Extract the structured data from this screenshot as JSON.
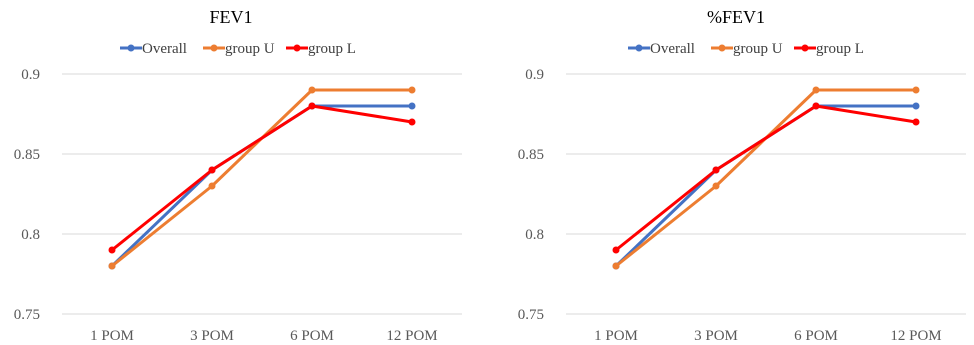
{
  "chart_data": [
    {
      "type": "line",
      "title": "FEV1",
      "categories": [
        "1 POM",
        "3 POM",
        "6 POM",
        "12 POM"
      ],
      "series": [
        {
          "name": "Overall",
          "color": "#4472C4",
          "values": [
            0.78,
            0.84,
            0.88,
            0.88
          ]
        },
        {
          "name": "group U",
          "color": "#ED7D31",
          "values": [
            0.78,
            0.83,
            0.89,
            0.89
          ]
        },
        {
          "name": "group L",
          "color": "#FF0000",
          "values": [
            0.79,
            0.84,
            0.88,
            0.87
          ]
        }
      ],
      "ylim": [
        0.75,
        0.9
      ],
      "yticks": [
        "0.75",
        "0.8",
        "0.85",
        "0.9"
      ],
      "grid": true,
      "legend": "top"
    },
    {
      "type": "line",
      "title": "%FEV1",
      "categories": [
        "1 POM",
        "3 POM",
        "6 POM",
        "12 POM"
      ],
      "series": [
        {
          "name": "Overall",
          "color": "#4472C4",
          "values": [
            0.78,
            0.84,
            0.88,
            0.88
          ]
        },
        {
          "name": "group U",
          "color": "#ED7D31",
          "values": [
            0.78,
            0.83,
            0.89,
            0.89
          ]
        },
        {
          "name": "group L",
          "color": "#FF0000",
          "values": [
            0.79,
            0.84,
            0.88,
            0.87
          ]
        }
      ],
      "ylim": [
        0.75,
        0.9
      ],
      "yticks": [
        "0.75",
        "0.8",
        "0.85",
        "0.9"
      ],
      "grid": true,
      "legend": "top"
    }
  ]
}
